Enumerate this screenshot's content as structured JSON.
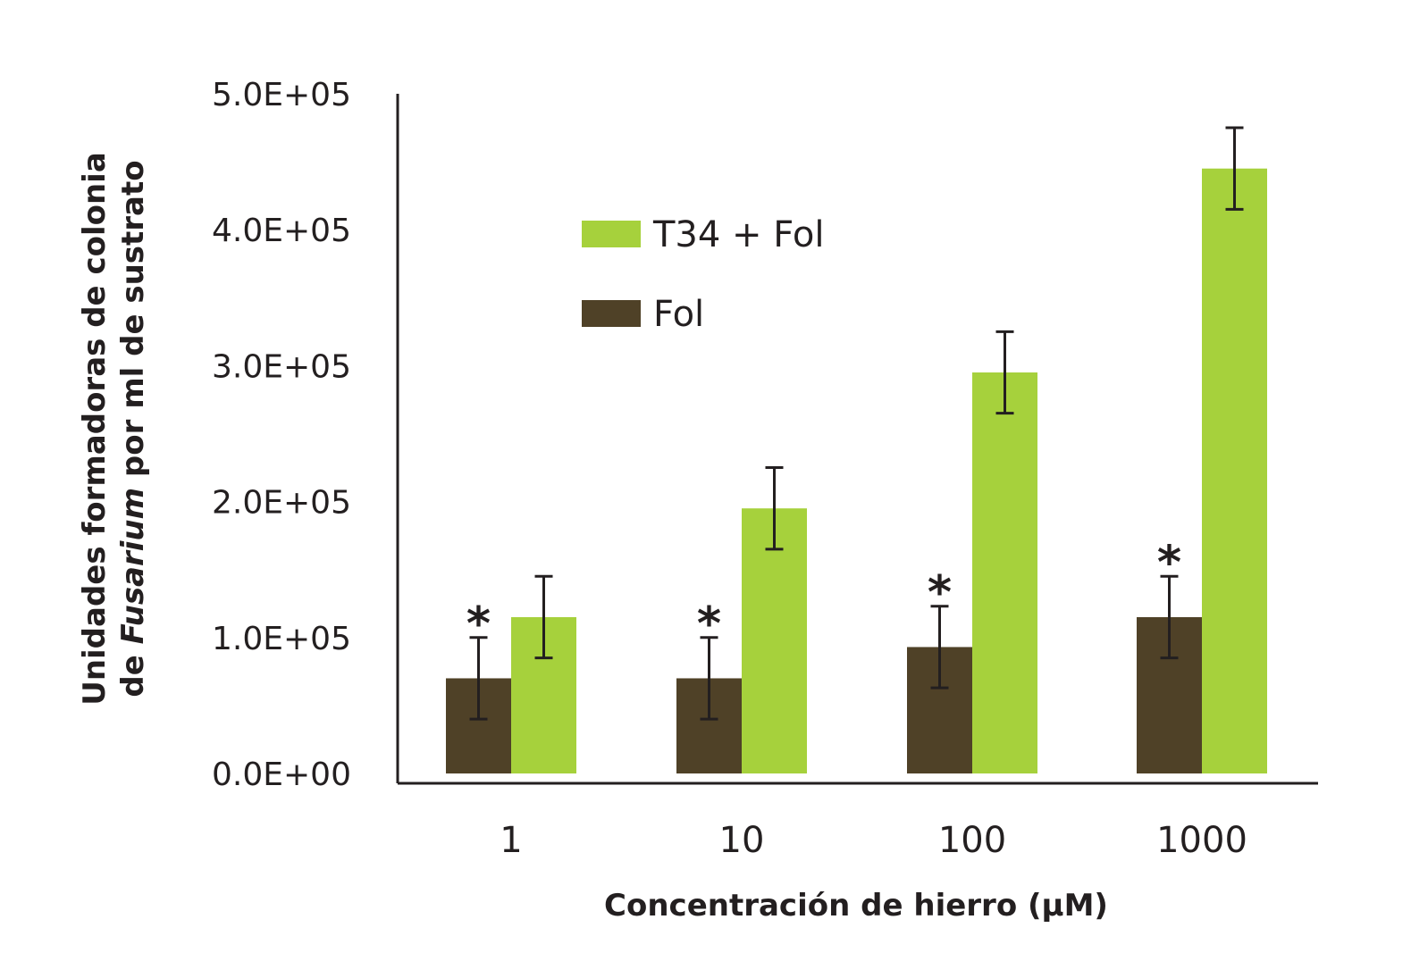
{
  "chart_data": {
    "type": "bar",
    "title": "",
    "xlabel": "Concentración de hierro (µM)",
    "ylabel_line1": "Unidades formadoras de colonia",
    "ylabel_line2_prefix": "de ",
    "ylabel_line2_italic": "Fusarium",
    "ylabel_line2_suffix": " por ml de sustrato",
    "categories": [
      "1",
      "10",
      "100",
      "1000"
    ],
    "ylim": [
      0,
      500000
    ],
    "yticks": [
      0,
      100000,
      200000,
      300000,
      400000,
      500000
    ],
    "ytick_labels": [
      "0.0E+00",
      "1.0E+05",
      "2.0E+05",
      "3.0E+05",
      "4.0E+05",
      "5.0E+05"
    ],
    "legend_position": "upper-left",
    "series": [
      {
        "name": "Fol",
        "color": "#4f4127",
        "values": [
          70000,
          70000,
          93000,
          115000
        ],
        "errors": [
          30000,
          30000,
          30000,
          30000
        ],
        "significance": [
          "*",
          "*",
          "*",
          "*"
        ]
      },
      {
        "name": "T34 + Fol",
        "color": "#a6d13c",
        "values": [
          115000,
          195000,
          295000,
          445000
        ],
        "errors": [
          30000,
          30000,
          30000,
          30000
        ],
        "significance": [
          "",
          "",
          "",
          ""
        ]
      }
    ],
    "legend_order": [
      1,
      0
    ]
  }
}
